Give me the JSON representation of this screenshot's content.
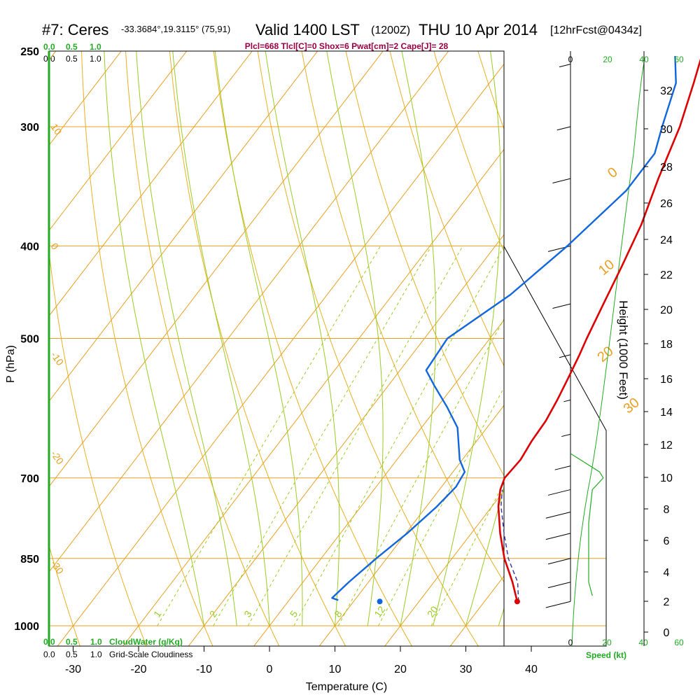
{
  "header": {
    "station": "#7: Ceres",
    "coords": "-33.3684°,19.3115° (75,91)",
    "valid": "Valid 1400 LST",
    "utc": "(1200Z)",
    "date": "THU 10 Apr 2014",
    "forecast": "[12hrFcst@0434z]"
  },
  "indices": "Plcl=668 Tlcl[C]=0 Shox=6 Pwat[cm]=2 Cape[J]= 28",
  "cloud_scale_top": {
    "green": [
      "0.0",
      "0.5",
      "1.0"
    ],
    "black": [
      "0.0",
      "0.5",
      "1.0"
    ]
  },
  "cloud_scale_bottom": {
    "green": [
      "0.0",
      "0.5",
      "1.0"
    ],
    "green_label": "CloudWater (g/Kg)",
    "black": [
      "0.0",
      "0.5",
      "1.0"
    ],
    "black_label": "Grid-Scale Cloudiness"
  },
  "speed_axis": {
    "top_dark": "0",
    "top_green": [
      "20",
      "40",
      "60"
    ],
    "bottom": [
      "0",
      "20",
      "40",
      "60"
    ],
    "label": "Speed (kt)"
  },
  "height_axis": {
    "label": "Height (1000 Feet)",
    "ticks": [
      [
        "0",
        903
      ],
      [
        "2",
        859
      ],
      [
        "4",
        817
      ],
      [
        "6",
        772
      ],
      [
        "8",
        727
      ],
      [
        "10",
        682
      ],
      [
        "12",
        635
      ],
      [
        "14",
        588
      ],
      [
        "16",
        541
      ],
      [
        "18",
        491
      ],
      [
        "20",
        442
      ],
      [
        "22",
        392
      ],
      [
        "24",
        342
      ],
      [
        "26",
        290
      ],
      [
        "28",
        238
      ],
      [
        "30",
        184
      ],
      [
        "32",
        129
      ]
    ]
  },
  "colors": {
    "isotherm": "#e8a020",
    "dry_adiabat": "#e8b020",
    "moist_adiabat": "#99cc22",
    "mixing_ratio": "#99cc22",
    "temperature": "#dd0000",
    "dewpoint": "#1166dd",
    "parcel": "#3333aa",
    "cloud": "#22aa22"
  },
  "chart_data": {
    "type": "line",
    "title": "",
    "xlabel": "Temperature (C)",
    "ylabel": "P (hPa)",
    "y_scale": "log",
    "pressure_ticks": [
      250,
      300,
      400,
      500,
      700,
      850,
      1000
    ],
    "temperature_ticks": [
      -30,
      -20,
      -10,
      0,
      10,
      20,
      30,
      40
    ],
    "isotherm_labels": [
      {
        "label": "10",
        "temp": 10,
        "p": 300
      },
      {
        "label": "0",
        "temp": 0,
        "p": 400
      },
      {
        "label": "-10",
        "temp": -10,
        "p": 520
      },
      {
        "label": "-20",
        "temp": -20,
        "p": 660
      },
      {
        "label": "-30",
        "temp": -30,
        "p": 860
      },
      {
        "label": "0",
        "temp": 0,
        "p": 340
      },
      {
        "label": "10",
        "temp": 10,
        "p": 430
      },
      {
        "label": "20",
        "temp": 20,
        "p": 530
      },
      {
        "label": "30",
        "temp": 30,
        "p": 600
      }
    ],
    "mixing_ratio_labels": [
      "1",
      "2",
      "3",
      "5",
      "8",
      "12",
      "20"
    ],
    "series": [
      {
        "name": "",
        "kind": "temperature",
        "points": [
          {
            "p": 943,
            "t": 35.0
          },
          {
            "p": 900,
            "t": 32.0
          },
          {
            "p": 850,
            "t": 28.0
          },
          {
            "p": 800,
            "t": 24.4
          },
          {
            "p": 750,
            "t": 21.0
          },
          {
            "p": 720,
            "t": 19.3
          },
          {
            "p": 700,
            "t": 18.6
          },
          {
            "p": 670,
            "t": 18.9
          },
          {
            "p": 640,
            "t": 18.4
          },
          {
            "p": 610,
            "t": 18.2
          },
          {
            "p": 580,
            "t": 17.5
          },
          {
            "p": 550,
            "t": 16.6
          },
          {
            "p": 520,
            "t": 15.6
          },
          {
            "p": 500,
            "t": 14.8
          },
          {
            "p": 460,
            "t": 13.3
          },
          {
            "p": 420,
            "t": 11.7
          },
          {
            "p": 380,
            "t": 9.8
          },
          {
            "p": 340,
            "t": 7.0
          },
          {
            "p": 300,
            "t": 4.2
          },
          {
            "p": 270,
            "t": 1.2
          },
          {
            "p": 255,
            "t": -0.5
          }
        ]
      },
      {
        "name": "",
        "kind": "dewpoint",
        "points": [
          {
            "p": 940,
            "t": 7.5
          },
          {
            "p": 935,
            "t": 6.3
          },
          {
            "p": 900,
            "t": 7.0
          },
          {
            "p": 850,
            "t": 8.4
          },
          {
            "p": 800,
            "t": 10.2
          },
          {
            "p": 750,
            "t": 11.6
          },
          {
            "p": 715,
            "t": 12.2
          },
          {
            "p": 690,
            "t": 11.8
          },
          {
            "p": 670,
            "t": 9.6
          },
          {
            "p": 650,
            "t": 8.0
          },
          {
            "p": 620,
            "t": 5.5
          },
          {
            "p": 590,
            "t": 1.5
          },
          {
            "p": 560,
            "t": -3.0
          },
          {
            "p": 540,
            "t": -6.0
          },
          {
            "p": 500,
            "t": -6.5
          },
          {
            "p": 450,
            "t": -2.0
          },
          {
            "p": 400,
            "t": 1.0
          },
          {
            "p": 350,
            "t": 3.5
          },
          {
            "p": 320,
            "t": 3.5
          },
          {
            "p": 300,
            "t": 1.5
          },
          {
            "p": 270,
            "t": -1.5
          },
          {
            "p": 253,
            "t": -4.8
          }
        ]
      },
      {
        "name": "",
        "kind": "parcel",
        "points": [
          {
            "p": 943,
            "t": 35.2
          },
          {
            "p": 900,
            "t": 32.8
          },
          {
            "p": 850,
            "t": 28.6
          },
          {
            "p": 800,
            "t": 25.0
          },
          {
            "p": 750,
            "t": 21.4
          },
          {
            "p": 720,
            "t": 19.6
          }
        ]
      }
    ],
    "surface_markers": [
      {
        "kind": "temperature",
        "p": 943,
        "t": 35.0
      },
      {
        "kind": "dewpoint",
        "p": 943,
        "t": 14.0
      }
    ],
    "wind_profile": [
      {
        "p": 258,
        "speed_kt": 5
      },
      {
        "p": 300,
        "speed_kt": 6
      },
      {
        "p": 340,
        "speed_kt": 8
      },
      {
        "p": 400,
        "speed_kt": 10
      },
      {
        "p": 460,
        "speed_kt": 8
      },
      {
        "p": 520,
        "speed_kt": 5
      },
      {
        "p": 580,
        "speed_kt": 3
      },
      {
        "p": 630,
        "speed_kt": 4
      },
      {
        "p": 680,
        "speed_kt": 7
      },
      {
        "p": 720,
        "speed_kt": 10
      },
      {
        "p": 760,
        "speed_kt": 11
      },
      {
        "p": 800,
        "speed_kt": 11
      },
      {
        "p": 850,
        "speed_kt": 10
      },
      {
        "p": 900,
        "speed_kt": 10
      },
      {
        "p": 943,
        "speed_kt": 11
      }
    ],
    "cloud_water_profile": [
      {
        "p": 660,
        "value": 0.0
      },
      {
        "p": 690,
        "value": 0.4
      },
      {
        "p": 700,
        "value": 0.45
      },
      {
        "p": 720,
        "value": 0.3
      },
      {
        "p": 780,
        "value": 0.25
      },
      {
        "p": 850,
        "value": 0.25
      },
      {
        "p": 900,
        "value": 0.25
      },
      {
        "p": 930,
        "value": 0.3
      }
    ]
  }
}
